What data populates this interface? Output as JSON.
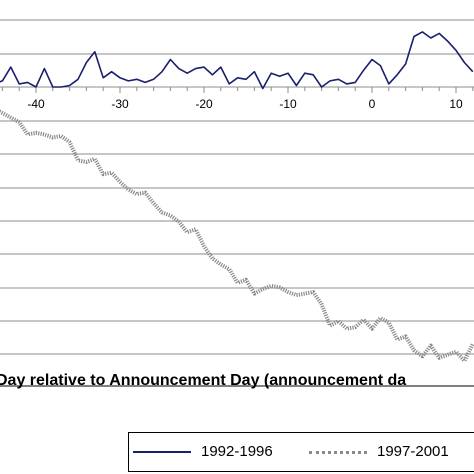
{
  "chart_data": {
    "type": "line",
    "xlabel": "Day relative to Announcement Day (announcement da",
    "x_ticks": [
      -40,
      -30,
      -20,
      -10,
      0,
      10
    ],
    "xlim": [
      -46,
      12
    ],
    "series": [
      {
        "name": "1992-1996",
        "color": "#1a1f6e",
        "style": "solid",
        "x": [
          -46,
          -45,
          -44,
          -43,
          -42,
          -41,
          -40,
          -39,
          -38,
          -37,
          -36,
          -35,
          -34,
          -33,
          -32,
          -31,
          -30,
          -29,
          -28,
          -27,
          -26,
          -25,
          -24,
          -23,
          -22,
          -21,
          -20,
          -19,
          -18,
          -17,
          -16,
          -15,
          -14,
          -13,
          -12,
          -11,
          -10,
          -9,
          -8,
          -7,
          -6,
          -5,
          -4,
          -3,
          -2,
          -1,
          0,
          1,
          2,
          3,
          4,
          5,
          6,
          7,
          8,
          9,
          10,
          11,
          12
        ],
        "y": [
          0.3,
          0.2,
          0.4,
          1.3,
          0.2,
          0.3,
          0.0,
          1.2,
          0.0,
          0.0,
          0.1,
          0.5,
          1.6,
          2.3,
          0.6,
          1.0,
          0.6,
          0.4,
          0.5,
          0.3,
          0.5,
          1.0,
          1.8,
          1.2,
          0.9,
          1.2,
          1.3,
          0.8,
          1.3,
          0.2,
          0.6,
          0.5,
          1.0,
          -0.1,
          0.9,
          0.7,
          0.9,
          0.1,
          0.9,
          0.8,
          0.0,
          0.4,
          0.5,
          0.2,
          0.3,
          1.1,
          1.8,
          1.4,
          0.2,
          0.8,
          1.5,
          3.3,
          3.6,
          3.2,
          3.5,
          3.0,
          2.4,
          1.6,
          1.0
        ]
      },
      {
        "name": "1997-2001",
        "color": "#8a8a8a",
        "style": "dotted",
        "x": [
          -46,
          -45,
          -44,
          -43,
          -42,
          -41,
          -40,
          -39,
          -38,
          -37,
          -36,
          -35,
          -34,
          -33,
          -32,
          -31,
          -30,
          -29,
          -28,
          -27,
          -26,
          -25,
          -24,
          -23,
          -22,
          -21,
          -20,
          -19,
          -18,
          -17,
          -16,
          -15,
          -14,
          -13,
          -12,
          -11,
          -10,
          -9,
          -8,
          -7,
          -6,
          -5,
          -4,
          -3,
          -2,
          -1,
          0,
          1,
          2,
          3,
          4,
          5,
          6,
          7,
          8,
          9,
          10,
          11,
          12
        ],
        "y": [
          -0.2,
          -1.4,
          -1.7,
          -2.0,
          -2.3,
          -3.1,
          -3.0,
          -3.1,
          -3.3,
          -3.2,
          -3.6,
          -4.8,
          -4.9,
          -4.7,
          -5.7,
          -5.6,
          -6.2,
          -6.7,
          -7.0,
          -6.9,
          -7.6,
          -8.2,
          -8.4,
          -8.8,
          -9.5,
          -9.3,
          -10.4,
          -11.2,
          -11.6,
          -11.9,
          -12.8,
          -12.6,
          -13.5,
          -13.2,
          -13.0,
          -13.1,
          -13.4,
          -13.6,
          -13.5,
          -13.4,
          -14.2,
          -15.6,
          -15.3,
          -15.8,
          -15.7,
          -15.2,
          -15.8,
          -15.1,
          -15.4,
          -16.5,
          -16.3,
          -17.2,
          -17.6,
          -16.9,
          -17.7,
          -17.5,
          -17.3,
          -17.9,
          -16.8
        ]
      }
    ],
    "grid": "horizontal",
    "legend_position": "bottom"
  }
}
